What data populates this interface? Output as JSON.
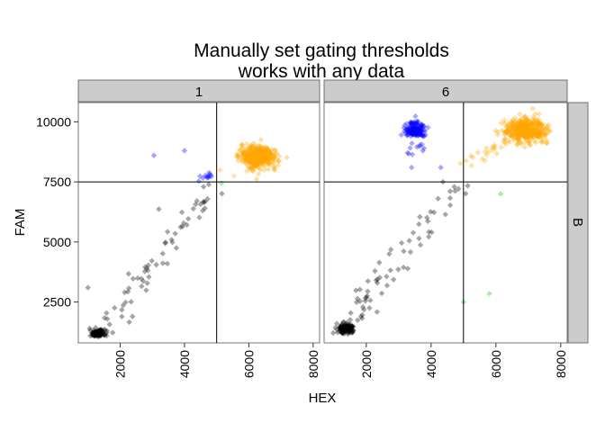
{
  "chart_data": {
    "type": "scatter",
    "title_lines": [
      "Manually set gating thresholds",
      "works with any data"
    ],
    "xlabel": "HEX",
    "ylabel": "FAM",
    "xlim": [
      700,
      8200
    ],
    "ylim": [
      800,
      10800
    ],
    "xticks": [
      2000,
      4000,
      6000,
      8000
    ],
    "yticks": [
      2500,
      5000,
      7500,
      10000
    ],
    "grid": false,
    "colors": {
      "black": "#000000",
      "blue": "#0000ff",
      "orange": "#ffa500",
      "green": "#00cc00",
      "strip": "#cccccc",
      "threshold": "#000000"
    },
    "row_strip": "B",
    "panels": [
      {
        "strip": "1",
        "thresholds": {
          "x": 5000,
          "y": 7500
        },
        "clusters": [
          {
            "color": "black",
            "n": 140,
            "cx": 1300,
            "cy": 1200,
            "sx": 120,
            "sy": 70
          },
          {
            "color": "orange",
            "n": 420,
            "cx": 6300,
            "cy": 8550,
            "sx": 280,
            "sy": 230
          }
        ],
        "streams": [
          {
            "color": "black",
            "n": 55,
            "from": [
              1500,
              1500
            ],
            "to": [
              4900,
              7300
            ],
            "jitter": 200
          },
          {
            "color": "black",
            "n": 8,
            "from": [
              1600,
              1900
            ],
            "to": [
              4000,
              6700
            ],
            "jitter": 250
          },
          {
            "color": "blue",
            "n": 12,
            "from": [
              4500,
              7550
            ],
            "to": [
              4950,
              8000
            ],
            "jitter": 80
          }
        ],
        "points": [
          {
            "color": "black",
            "x": 1000,
            "y": 3100
          },
          {
            "color": "blue",
            "x": 3050,
            "y": 8600
          },
          {
            "color": "blue",
            "x": 4000,
            "y": 8800
          },
          {
            "color": "green",
            "x": 5150,
            "y": 7450
          }
        ]
      },
      {
        "strip": "6",
        "thresholds": {
          "x": 5000,
          "y": 7500
        },
        "clusters": [
          {
            "color": "black",
            "n": 140,
            "cx": 1350,
            "cy": 1400,
            "sx": 120,
            "sy": 90
          },
          {
            "color": "blue",
            "n": 150,
            "cx": 3500,
            "cy": 9650,
            "sx": 150,
            "sy": 170
          },
          {
            "color": "orange",
            "n": 420,
            "cx": 6950,
            "cy": 9650,
            "sx": 320,
            "sy": 250
          }
        ],
        "streams": [
          {
            "color": "black",
            "n": 55,
            "from": [
              1500,
              1600
            ],
            "to": [
              4800,
              7400
            ],
            "jitter": 220
          },
          {
            "color": "black",
            "n": 10,
            "from": [
              1900,
              2800
            ],
            "to": [
              3000,
              4700
            ],
            "jitter": 250
          },
          {
            "color": "blue",
            "n": 12,
            "from": [
              3300,
              8600
            ],
            "to": [
              3700,
              9300
            ],
            "jitter": 120
          },
          {
            "color": "orange",
            "n": 25,
            "from": [
              5000,
              8100
            ],
            "to": [
              6300,
              9300
            ],
            "jitter": 150
          }
        ],
        "points": [
          {
            "color": "blue",
            "x": 3400,
            "y": 8100
          },
          {
            "color": "blue",
            "x": 4300,
            "y": 8100
          },
          {
            "color": "green",
            "x": 6150,
            "y": 7000
          },
          {
            "color": "green",
            "x": 5800,
            "y": 2850
          },
          {
            "color": "green",
            "x": 5000,
            "y": 2500
          }
        ]
      }
    ]
  }
}
